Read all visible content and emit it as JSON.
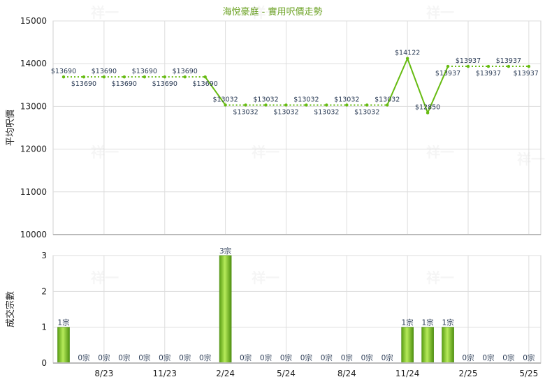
{
  "chart_data": [
    {
      "type": "line",
      "title": "海悅豪庭 - 實用呎價走勢",
      "ylabel": "平均呎價",
      "ylim": [
        10000,
        15000
      ],
      "yticks": [
        "15000",
        "14000",
        "13000",
        "12000",
        "11000",
        "10000"
      ],
      "x_tick_labels": [
        "8/23",
        "11/23",
        "2/24",
        "5/24",
        "8/24",
        "11/24",
        "2/25",
        "5/25"
      ],
      "grid": true,
      "color": "#66bb11",
      "values": [
        13690,
        13690,
        13690,
        13690,
        13690,
        13690,
        13690,
        13690,
        13032,
        13032,
        13032,
        13032,
        13032,
        13032,
        13032,
        13032,
        13032,
        14122,
        12850,
        13937,
        13937,
        13937,
        13937,
        13937
      ],
      "labels": [
        "$13690",
        "$13690",
        "$13690",
        "$13690",
        "$13690",
        "$13690",
        "$13690",
        "$13690",
        "$13032",
        "$13032",
        "$13032",
        "$13032",
        "$13032",
        "$13032",
        "$13032",
        "$13032",
        "$13032",
        "$14122",
        "$12850",
        "$13937",
        "$13937",
        "$13937",
        "$13937",
        "$13937"
      ]
    },
    {
      "type": "bar",
      "ylabel": "成交宗數",
      "ylim": [
        0,
        3
      ],
      "yticks": [
        "3",
        "2",
        "1",
        "0"
      ],
      "values": [
        1,
        0,
        0,
        0,
        0,
        0,
        0,
        0,
        3,
        0,
        0,
        0,
        0,
        0,
        0,
        0,
        0,
        1,
        1,
        1,
        0,
        0,
        0,
        0
      ],
      "labels": [
        "1宗",
        "0宗",
        "0宗",
        "0宗",
        "0宗",
        "0宗",
        "0宗",
        "0宗",
        "3宗",
        "0宗",
        "0宗",
        "0宗",
        "0宗",
        "0宗",
        "0宗",
        "0宗",
        "0宗",
        "1宗",
        "1宗",
        "1宗",
        "0宗",
        "0宗",
        "0宗",
        "0宗"
      ]
    }
  ],
  "watermark": "祥一"
}
